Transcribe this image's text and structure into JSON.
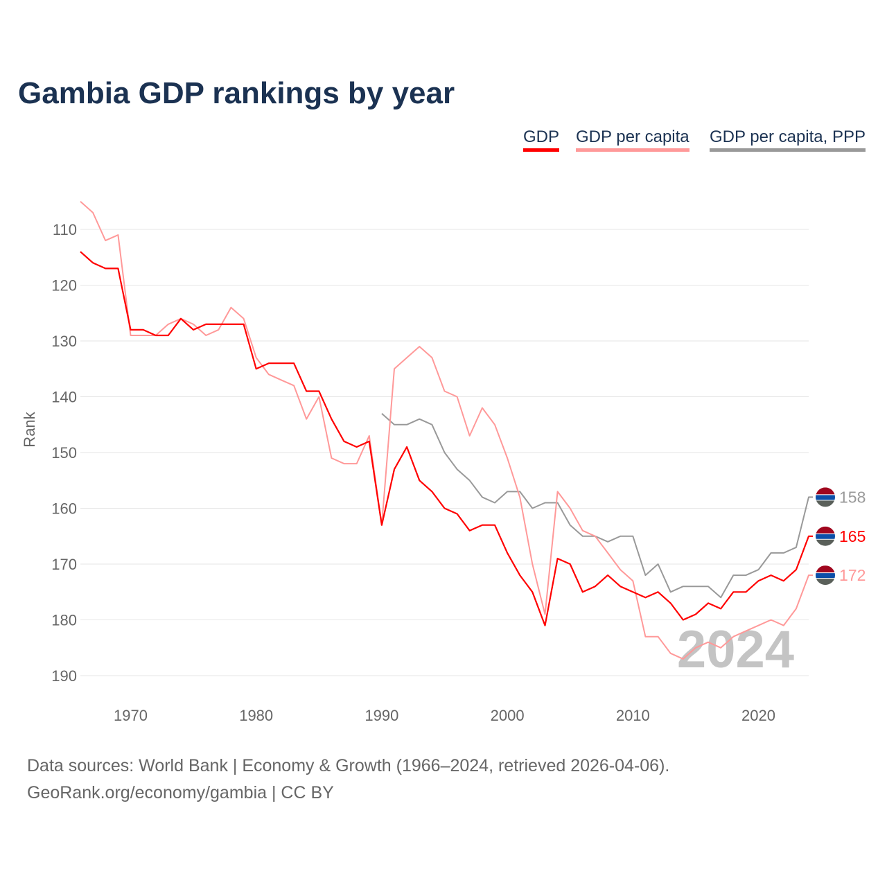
{
  "chart_data": {
    "type": "line",
    "title": "Gambia GDP rankings by year",
    "xlabel": "",
    "ylabel": "Rank",
    "xlim": [
      1966,
      2024
    ],
    "ylim": [
      105,
      190
    ],
    "y_inverted": true,
    "grid": true,
    "legend_placement": "top-right",
    "x_ticks": [
      1970,
      1980,
      1990,
      2000,
      2010,
      2020
    ],
    "y_ticks": [
      110,
      120,
      130,
      140,
      150,
      160,
      170,
      180,
      190
    ],
    "watermark_year": "2024",
    "series": [
      {
        "name": "GDP",
        "color": "#ff0000",
        "start_year": 1966,
        "end_label": "165",
        "values": [
          114,
          116,
          117,
          117,
          128,
          128,
          129,
          129,
          126,
          128,
          127,
          127,
          127,
          127,
          135,
          134,
          134,
          134,
          139,
          139,
          144,
          148,
          149,
          148,
          163,
          153,
          149,
          155,
          157,
          160,
          161,
          164,
          163,
          163,
          168,
          172,
          175,
          181,
          169,
          170,
          175,
          174,
          172,
          174,
          175,
          176,
          175,
          177,
          180,
          179,
          177,
          178,
          175,
          175,
          173,
          172,
          173,
          171,
          165
        ]
      },
      {
        "name": "GDP per capita",
        "color": "#ff9999",
        "start_year": 1966,
        "end_label": "172",
        "values": [
          105,
          107,
          112,
          111,
          129,
          129,
          129,
          127,
          126,
          127,
          129,
          128,
          124,
          126,
          133,
          136,
          137,
          138,
          144,
          140,
          151,
          152,
          152,
          147,
          163,
          135,
          133,
          131,
          133,
          139,
          140,
          147,
          142,
          145,
          151,
          158,
          170,
          179,
          157,
          160,
          164,
          165,
          168,
          171,
          173,
          183,
          183,
          186,
          187,
          185,
          184,
          185,
          183,
          182,
          181,
          180,
          181,
          178,
          172
        ]
      },
      {
        "name": "GDP per capita, PPP",
        "color": "#999999",
        "start_year": 1990,
        "end_label": "158",
        "values": [
          143,
          145,
          145,
          144,
          145,
          150,
          153,
          155,
          158,
          159,
          157,
          157,
          160,
          159,
          159,
          163,
          165,
          165,
          166,
          165,
          165,
          172,
          170,
          175,
          174,
          174,
          174,
          176,
          172,
          172,
          171,
          168,
          168,
          167,
          158
        ]
      }
    ]
  },
  "footer": {
    "line1": "Data sources: World Bank | Economy & Growth (1966–2024, retrieved 2026-04-06).",
    "line2": "GeoRank.org/economy/gambia | CC BY"
  },
  "icons": {
    "end_marker": "gambia-flag-icon"
  }
}
